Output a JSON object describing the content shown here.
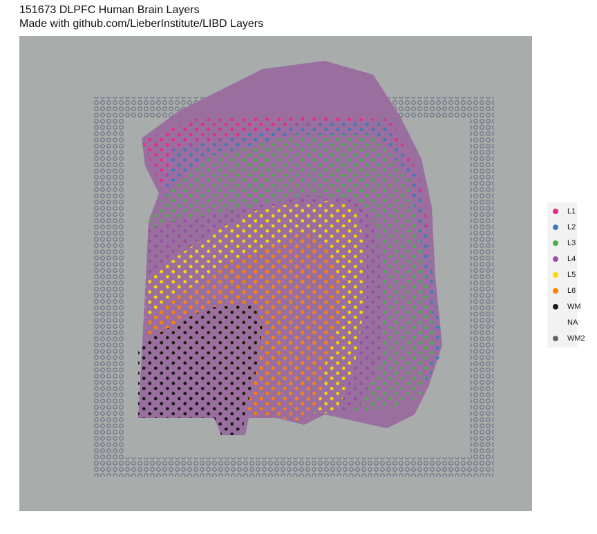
{
  "header": {
    "title": "151673 DLPFC Human Brain Layers",
    "subtitle": "Made with github.com/LieberInstitute/LIBD Layers"
  },
  "legend": {
    "items": [
      {
        "label": "L1",
        "color": "#e7298a"
      },
      {
        "label": "L2",
        "color": "#377eb8"
      },
      {
        "label": "L3",
        "color": "#4daf4a"
      },
      {
        "label": "L4",
        "color": "#984ea3"
      },
      {
        "label": "L5",
        "color": "#ffd700"
      },
      {
        "label": "L6",
        "color": "#ff7f00"
      },
      {
        "label": "WM",
        "color": "#1a1a1a"
      },
      {
        "label": "NA",
        "color": null
      },
      {
        "label": "WM2",
        "color": "#666666"
      }
    ]
  }
}
